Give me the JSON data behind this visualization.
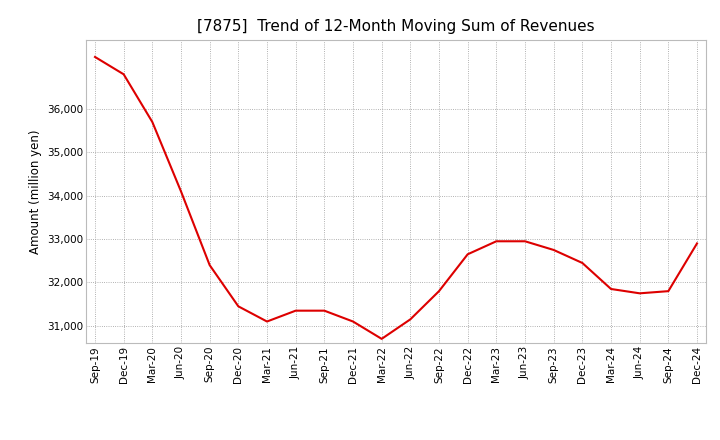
{
  "title": "[7875]  Trend of 12-Month Moving Sum of Revenues",
  "ylabel": "Amount (million yen)",
  "line_color": "#dd0000",
  "background_color": "#ffffff",
  "grid_color": "#999999",
  "x_labels": [
    "Sep-19",
    "Dec-19",
    "Mar-20",
    "Jun-20",
    "Sep-20",
    "Dec-20",
    "Mar-21",
    "Jun-21",
    "Sep-21",
    "Dec-21",
    "Mar-22",
    "Jun-22",
    "Sep-22",
    "Dec-22",
    "Mar-23",
    "Jun-23",
    "Sep-23",
    "Dec-23",
    "Mar-24",
    "Jun-24",
    "Sep-24",
    "Dec-24"
  ],
  "values": [
    37200,
    36800,
    35700,
    34100,
    32400,
    31450,
    31100,
    31350,
    31350,
    31100,
    30700,
    31150,
    31800,
    32650,
    32950,
    32950,
    32750,
    32450,
    31850,
    31750,
    31800,
    32900
  ],
  "ylim_min": 30600,
  "ylim_max": 37600,
  "yticks": [
    31000,
    32000,
    33000,
    34000,
    35000,
    36000
  ],
  "title_fontsize": 11,
  "label_fontsize": 8.5,
  "tick_fontsize": 7.5
}
